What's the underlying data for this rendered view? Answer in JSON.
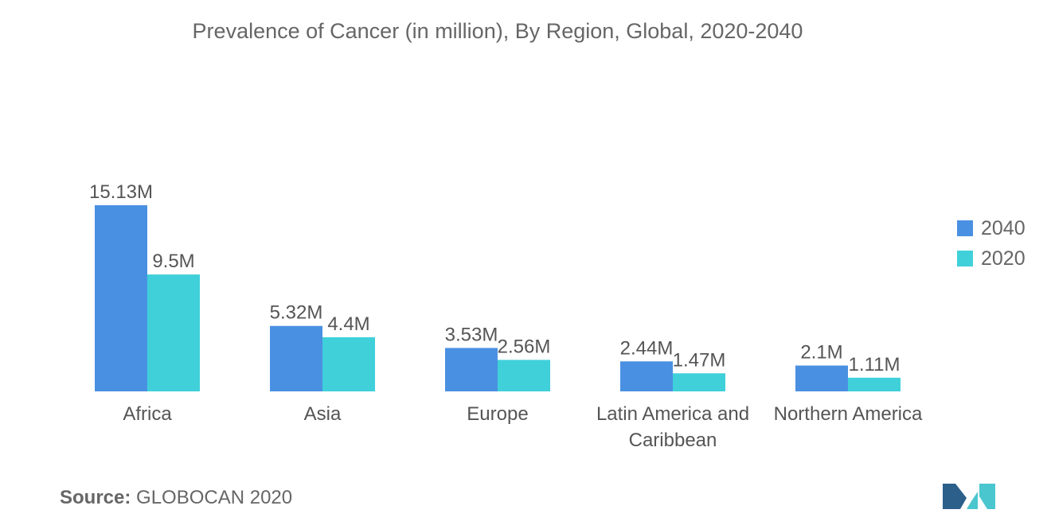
{
  "chart_data": {
    "type": "bar",
    "title": "Prevalence of Cancer (in million), By Region, Global, 2020-2040",
    "categories": [
      "Africa",
      "Asia",
      "Europe",
      "Latin America and Caribbean",
      "Northern America"
    ],
    "category_lines": [
      [
        "Africa"
      ],
      [
        "Asia"
      ],
      [
        "Europe"
      ],
      [
        "Latin America and",
        "Caribbean"
      ],
      [
        "Northern America"
      ]
    ],
    "series": [
      {
        "name": "2040",
        "values": [
          15.13,
          5.32,
          3.53,
          2.44,
          2.1
        ],
        "labels": [
          "15.13M",
          "5.32M",
          "3.53M",
          "2.44M",
          "2.1M"
        ],
        "color": "#4a90e2"
      },
      {
        "name": "2020",
        "values": [
          9.5,
          4.4,
          2.56,
          1.47,
          1.11
        ],
        "labels": [
          "9.5M",
          "4.4M",
          "2.56M",
          "1.47M",
          "1.11M"
        ],
        "color": "#40d0da"
      }
    ],
    "ylim": [
      0,
      15.13
    ],
    "grid": false,
    "legend_position": "right"
  },
  "source": {
    "label": "Source:",
    "text": "GLOBOCAN 2020"
  },
  "logo": {
    "icon": "mordor-intelligence-logo",
    "colors": [
      "#2d5f8b",
      "#4ac6cf"
    ]
  }
}
